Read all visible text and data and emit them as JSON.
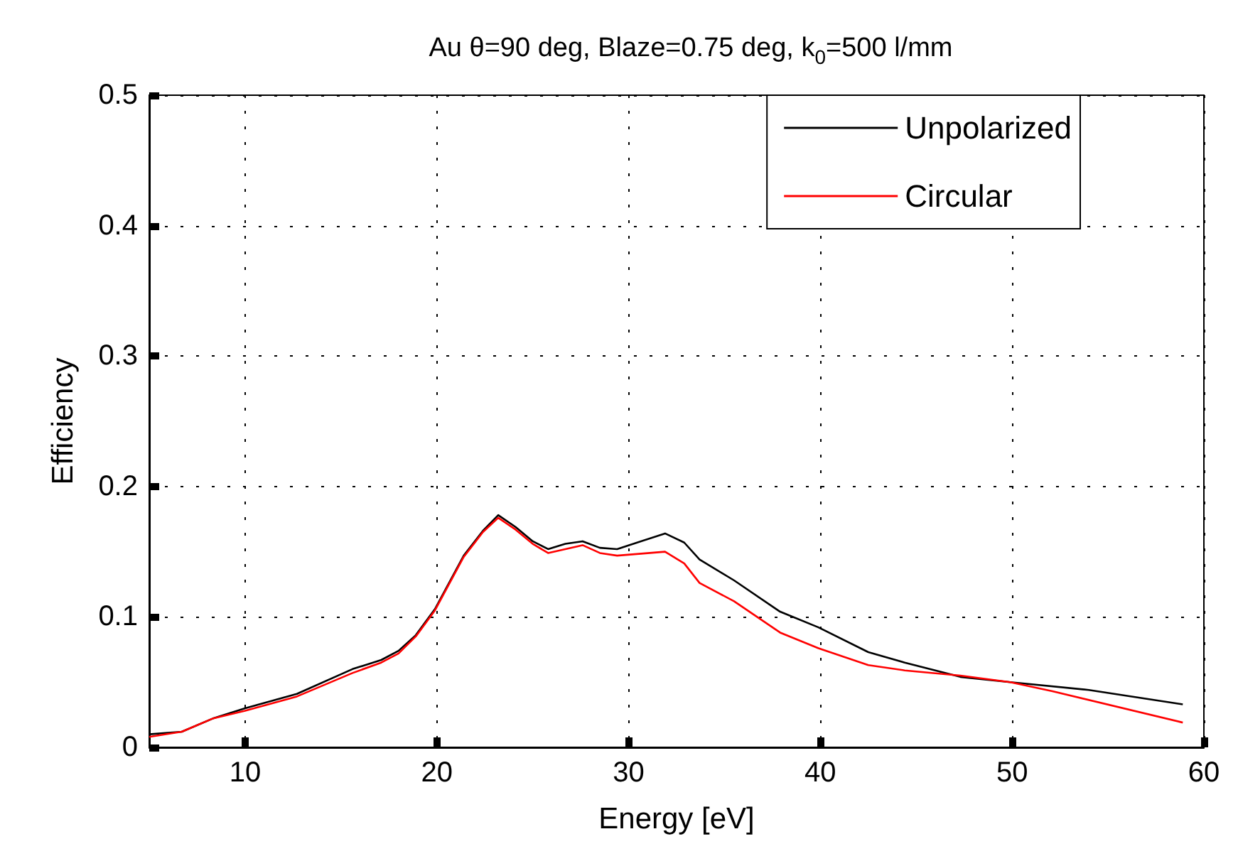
{
  "chart_data": {
    "type": "line",
    "title": "Au θ=90 deg, Blaze=0.75 deg, k$_{0}$=500 l/mm",
    "xlabel": "Energy [eV]",
    "ylabel": "Efficiency",
    "xlim": [
      5,
      60
    ],
    "xticks": [
      10,
      20,
      30,
      40,
      50,
      60
    ],
    "ylim": [
      0,
      0.5
    ],
    "yticks": [
      0,
      0.1,
      0.2,
      0.3,
      0.4,
      0.5
    ],
    "grid": true,
    "legend": "top right",
    "line_style": "solid",
    "marker": "none",
    "series": [
      {
        "name": "Unpolarized",
        "color": "#000000",
        "x": [
          5,
          6.7,
          8.3,
          10,
          12.7,
          15.6,
          17.1,
          18,
          18.9,
          19.9,
          21.4,
          22.4,
          23.2,
          24.1,
          25,
          25.8,
          26.7,
          27.6,
          28.5,
          29.4,
          31.9,
          32.9,
          33.7,
          35.5,
          37.9,
          39.9,
          42.5,
          44.4,
          47.3,
          49.9,
          54,
          58.9
        ],
        "values": [
          0.01,
          0.012,
          0.022,
          0.03,
          0.041,
          0.06,
          0.067,
          0.074,
          0.086,
          0.106,
          0.147,
          0.166,
          0.178,
          0.169,
          0.158,
          0.152,
          0.156,
          0.158,
          0.153,
          0.152,
          0.164,
          0.157,
          0.144,
          0.128,
          0.104,
          0.092,
          0.073,
          0.065,
          0.054,
          0.05,
          0.044,
          0.033
        ]
      },
      {
        "name": "Circular",
        "color": "#ff0000",
        "x": [
          5,
          6.7,
          8.3,
          10,
          12.7,
          15.6,
          17.1,
          18,
          18.9,
          19.9,
          21.4,
          22.4,
          23.2,
          24.1,
          25,
          25.8,
          26.7,
          27.6,
          28.5,
          29.4,
          31.9,
          32.9,
          33.7,
          35.5,
          37.9,
          39.9,
          42.5,
          44.4,
          47.3,
          49.9,
          52.1,
          58.9
        ],
        "values": [
          0.008,
          0.012,
          0.022,
          0.028,
          0.039,
          0.057,
          0.065,
          0.072,
          0.085,
          0.105,
          0.146,
          0.165,
          0.176,
          0.167,
          0.156,
          0.149,
          0.152,
          0.155,
          0.149,
          0.147,
          0.15,
          0.141,
          0.126,
          0.112,
          0.088,
          0.076,
          0.063,
          0.059,
          0.055,
          0.05,
          0.043,
          0.019
        ]
      }
    ]
  }
}
